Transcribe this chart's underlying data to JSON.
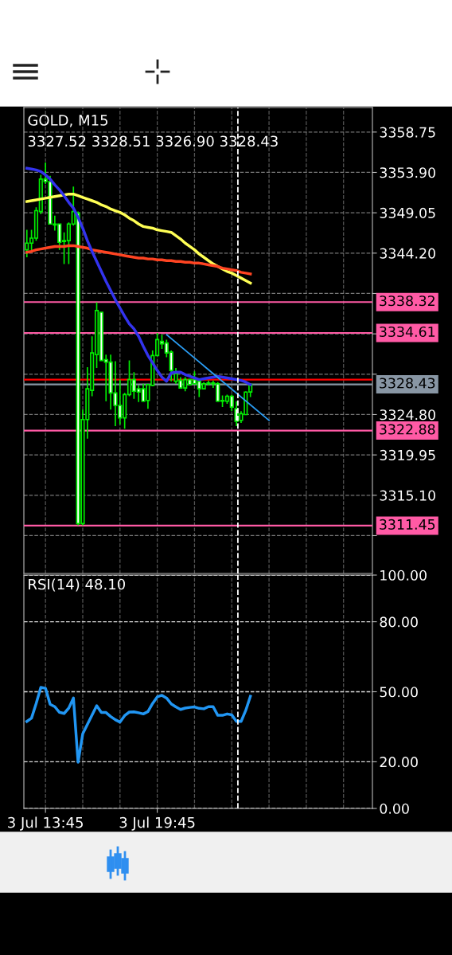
{
  "chart_data": [
    {
      "type": "candlestick",
      "title": "GOLD, M15",
      "subtitle": "3327.52 3328.51 3326.90 3328.43",
      "categories": [
        null,
        null,
        null,
        null,
        null,
        null,
        null,
        null,
        null,
        null,
        null,
        null,
        null,
        null,
        null,
        null,
        null,
        null,
        null,
        null,
        null,
        null,
        null,
        null,
        null,
        null,
        null,
        null,
        null,
        null,
        null,
        null,
        null,
        null,
        null,
        null,
        null,
        null,
        null,
        null,
        null,
        null,
        null,
        null,
        null,
        null,
        null,
        null,
        null,
        null,
        null,
        null,
        null,
        null,
        null,
        null,
        null,
        null,
        null,
        null,
        null,
        null,
        null,
        null,
        null,
        null,
        null,
        null,
        null,
        null,
        null,
        null,
        null,
        null,
        null
      ],
      "ylim": [
        3305.7,
        3361.7
      ],
      "yticks": [
        {
          "value": 3358.75,
          "label": "3358.75"
        },
        {
          "value": 3353.9,
          "label": "3353.90"
        },
        {
          "value": 3349.05,
          "label": "3349.05"
        },
        {
          "value": 3344.2,
          "label": "3344.20"
        },
        {
          "value": 3339.35,
          "label": null
        },
        {
          "value": 3334.5,
          "label": null
        },
        {
          "value": 3329.65,
          "label": null
        },
        {
          "value": 3324.8,
          "label": "3324.80"
        },
        {
          "value": 3319.95,
          "label": "3319.95"
        },
        {
          "value": 3315.1,
          "label": "3315.10"
        },
        {
          "value": 3310.25,
          "label": null
        }
      ],
      "tick_labels": "y",
      "grid": true,
      "series": [
        {
          "type": "candlestick",
          "color": "#00ee00",
          "ohlc": [
            [
              3344.6,
              3347.0,
              3343.7,
              3345.4
            ],
            [
              3345.4,
              3347.0,
              3344.4,
              3346.0
            ],
            [
              3346.0,
              3349.7,
              3345.7,
              3349.3
            ],
            [
              3349.2,
              3353.6,
              3348.9,
              3353.1
            ],
            [
              3353.1,
              3355.1,
              3352.5,
              3352.8
            ],
            [
              3352.8,
              3353.5,
              3347.7,
              3347.7
            ],
            [
              3347.7,
              3348.7,
              3346.9,
              3347.6
            ],
            [
              3347.7,
              3347.7,
              3344.6,
              3345.5
            ],
            [
              3345.6,
              3346.7,
              3342.9,
              3345.7
            ],
            [
              3345.7,
              3347.9,
              3342.9,
              3347.7
            ],
            [
              3347.7,
              3352.2,
              3347.5,
              3349.2
            ],
            [
              3349.0,
              3349.2,
              3311.5,
              3311.7
            ],
            [
              3311.7,
              3325.4,
              3311.5,
              3324.2
            ],
            [
              3324.2,
              3330.5,
              3321.9,
              3327.9
            ],
            [
              3327.7,
              3334.2,
              3327.0,
              3332.2
            ],
            [
              3332.0,
              3338.3,
              3330.4,
              3337.3
            ],
            [
              3337.1,
              3337.1,
              3331.3,
              3331.3
            ],
            [
              3331.4,
              3332.0,
              3326.4,
              3331.1
            ],
            [
              3331.1,
              3332.0,
              3325.4,
              3327.4
            ],
            [
              3327.4,
              3331.2,
              3323.4,
              3325.9
            ],
            [
              3325.9,
              3329.0,
              3323.6,
              3324.4
            ],
            [
              3324.4,
              3327.4,
              3323.1,
              3327.2
            ],
            [
              3327.2,
              3331.3,
              3327.0,
              3329.0
            ],
            [
              3329.0,
              3329.9,
              3326.7,
              3327.6
            ],
            [
              3327.9,
              3328.3,
              3326.3,
              3327.5
            ],
            [
              3327.9,
              3328.5,
              3326.3,
              3326.4
            ],
            [
              3326.5,
              3328.5,
              3325.5,
              3328.4
            ],
            [
              3328.3,
              3332.5,
              3328.2,
              3331.9
            ],
            [
              3331.9,
              3334.6,
              3331.8,
              3333.8
            ],
            [
              3333.6,
              3334.4,
              3332.7,
              3333.3
            ],
            [
              3333.4,
              3333.8,
              3331.7,
              3332.2
            ],
            [
              3332.3,
              3332.5,
              3328.8,
              3330.1
            ],
            [
              3328.8,
              3330.4,
              3328.5,
              3329.7
            ],
            [
              3328.9,
              3329.3,
              3327.9,
              3328.0
            ],
            [
              3328.0,
              3329.3,
              3327.6,
              3329.0
            ],
            [
              3329.0,
              3329.1,
              3328.3,
              3328.4
            ],
            [
              3329.0,
              3330.0,
              3328.4,
              3328.5
            ],
            [
              3328.8,
              3329.0,
              3326.9,
              3327.9
            ],
            [
              3327.9,
              3328.7,
              3327.9,
              3328.5
            ],
            [
              3328.5,
              3328.9,
              3328.3,
              3328.6
            ],
            [
              3328.6,
              3328.9,
              3328.0,
              3328.5
            ],
            [
              3328.5,
              3328.7,
              3326.3,
              3326.4
            ],
            [
              3326.5,
              3327.1,
              3325.7,
              3326.4
            ],
            [
              3326.4,
              3327.2,
              3326.1,
              3327.0
            ],
            [
              3327.0,
              3327.2,
              3325.2,
              3325.7
            ],
            [
              3325.5,
              3326.4,
              3323.4,
              3324.0
            ],
            [
              3324.1,
              3325.2,
              3323.8,
              3324.9
            ],
            [
              3324.8,
              3327.6,
              3324.8,
              3327.5
            ],
            [
              3327.52,
              3328.51,
              3326.9,
              3328.43
            ],
            null,
            null,
            null,
            null,
            null,
            null,
            null,
            null,
            null,
            null,
            null,
            null,
            null,
            null,
            null,
            null,
            null,
            null,
            null,
            null,
            null,
            null,
            null,
            null,
            null,
            null
          ]
        },
        {
          "type": "line",
          "color": "#ffff55",
          "values": [
            3350.4,
            3350.5,
            3350.6,
            3350.7,
            3350.8,
            3350.9,
            3351.0,
            3351.1,
            3351.2,
            3351.3,
            3351.3,
            3351.1,
            3350.9,
            3350.7,
            3350.5,
            3350.3,
            3350.0,
            3349.8,
            3349.5,
            3349.3,
            3349.1,
            3348.8,
            3348.4,
            3348.1,
            3347.7,
            3347.4,
            3347.3,
            3347.2,
            3347.0,
            3346.9,
            3346.8,
            3346.7,
            3346.3,
            3345.9,
            3345.4,
            3345.0,
            3344.6,
            3344.1,
            3343.7,
            3343.3,
            3342.9,
            3342.6,
            3342.3,
            3342.0,
            3341.8,
            3341.5,
            3341.2,
            3340.9,
            3340.6,
            null,
            null,
            null,
            null,
            null,
            null,
            null,
            null,
            null,
            null,
            null,
            null,
            null,
            null,
            null,
            null,
            null,
            null,
            null,
            null,
            null,
            null,
            null,
            null,
            null,
            null
          ]
        },
        {
          "type": "line",
          "color": "#ff4422",
          "values": [
            3344.3,
            3344.4,
            3344.6,
            3344.7,
            3344.8,
            3344.9,
            3345.0,
            3345.0,
            3345.0,
            3345.1,
            3345.1,
            3345.0,
            3344.9,
            3344.8,
            3344.6,
            3344.5,
            3344.4,
            3344.3,
            3344.2,
            3344.1,
            3344.0,
            3343.9,
            3343.8,
            3343.7,
            3343.6,
            3343.6,
            3343.5,
            3343.5,
            3343.4,
            3343.4,
            3343.3,
            3343.3,
            3343.2,
            3343.2,
            3343.1,
            3343.1,
            3343.0,
            3343.0,
            3342.9,
            3342.8,
            3342.7,
            3342.6,
            3342.4,
            3342.3,
            3342.2,
            3342.1,
            3341.9,
            3341.8,
            3341.7,
            null,
            null,
            null,
            null,
            null,
            null,
            null,
            null,
            null,
            null,
            null,
            null,
            null,
            null,
            null,
            null,
            null,
            null,
            null,
            null,
            null,
            null,
            null,
            null,
            null,
            null
          ]
        },
        {
          "type": "line",
          "color": "#3333ee",
          "values": [
            3354.4,
            3354.3,
            3354.2,
            3354.0,
            3353.6,
            3353.1,
            3352.4,
            3351.8,
            3351.1,
            3350.3,
            3349.6,
            3348.5,
            3347.2,
            3345.7,
            3344.4,
            3343.2,
            3342.0,
            3340.8,
            3339.7,
            3338.6,
            3337.6,
            3336.6,
            3335.7,
            3335.1,
            3334.2,
            3333.0,
            3331.9,
            3331.0,
            3330.1,
            3329.3,
            3328.8,
            3329.8,
            3329.9,
            3329.9,
            3329.6,
            3329.4,
            3329.2,
            3329.0,
            3329.1,
            3329.2,
            3329.3,
            3329.4,
            3329.3,
            3329.2,
            3329.1,
            3329.0,
            3328.9,
            3328.7,
            3328.4,
            null,
            null,
            null,
            null,
            null,
            null,
            null,
            null,
            null,
            null,
            null,
            null,
            null,
            null,
            null,
            null,
            null,
            null,
            null,
            null,
            null,
            null,
            null,
            null,
            null,
            null
          ]
        },
        {
          "type": "line",
          "color": "#2a9df4",
          "values": [
            null,
            null,
            null,
            null,
            null,
            null,
            null,
            null,
            null,
            null,
            null,
            null,
            null,
            null,
            null,
            null,
            null,
            null,
            null,
            null,
            null,
            null,
            null,
            null,
            null,
            null,
            null,
            null,
            null,
            null,
            3334.4,
            null,
            null,
            null,
            null,
            null,
            null,
            null,
            null,
            null,
            null,
            null,
            null,
            null,
            null,
            null,
            null,
            null,
            null,
            null,
            null,
            null,
            3324.1,
            null,
            null,
            null,
            null,
            null,
            null,
            null,
            null,
            null,
            null,
            null,
            null,
            null,
            null,
            null,
            null,
            null,
            null,
            null,
            null,
            null,
            null
          ]
        }
      ],
      "ref_lines": [
        {
          "axis": "y",
          "value": 3338.32,
          "label": "3338.32",
          "color": "#ff5aa5"
        },
        {
          "axis": "y",
          "value": 3334.61,
          "label": "3334.61",
          "color": "#ff5aa5"
        },
        {
          "axis": "y",
          "value": 3322.88,
          "label": "3322.88",
          "color": "#ff5aa5"
        },
        {
          "axis": "y",
          "value": 3311.45,
          "label": "3311.45",
          "color": "#ff5aa5"
        },
        {
          "axis": "y",
          "value": 3329.0,
          "color": "#ff0000"
        },
        {
          "axis": "y",
          "value": 3328.43,
          "label": "3328.43",
          "color": "#8896a4"
        }
      ]
    },
    {
      "type": "line",
      "title": "RSI(14) 48.10",
      "categories": [
        null,
        null,
        null,
        null,
        "3 Jul 13:45",
        null,
        null,
        null,
        null,
        null,
        null,
        null,
        null,
        null,
        null,
        null,
        null,
        null,
        null,
        null,
        null,
        null,
        null,
        null,
        null,
        null,
        null,
        null,
        "3 Jul 19:45",
        null,
        null,
        null,
        null,
        null,
        null,
        null,
        null,
        null,
        null,
        null,
        null,
        null,
        null,
        null,
        null,
        null,
        null,
        null,
        null,
        null,
        null,
        null,
        null,
        null,
        null,
        null,
        null,
        null,
        null,
        null,
        null,
        null,
        null,
        null,
        null,
        null,
        null,
        null,
        null,
        null,
        null,
        null,
        null,
        null,
        null
      ],
      "ylim": [
        0,
        100
      ],
      "yticks": [
        {
          "value": 100,
          "label": "100.00"
        },
        {
          "value": 80,
          "label": "80.00"
        },
        {
          "value": 50,
          "label": "50.00"
        },
        {
          "value": 20,
          "label": "20.00"
        },
        {
          "value": 0,
          "label": "0.00"
        }
      ],
      "grid": true,
      "series": [
        {
          "color": "#2196f3",
          "values": [
            37.3,
            38.7,
            45.0,
            51.9,
            51.5,
            44.6,
            43.6,
            41.2,
            40.7,
            43.0,
            47.3,
            19.8,
            32.0,
            36.0,
            40.0,
            44.0,
            41.1,
            41.1,
            39.4,
            38.0,
            37.0,
            39.8,
            41.3,
            41.4,
            41.0,
            40.5,
            41.5,
            45.0,
            47.8,
            48.5,
            47.3,
            44.8,
            43.5,
            42.4,
            43.0,
            43.3,
            43.5,
            42.9,
            42.7,
            43.6,
            43.6,
            39.9,
            39.9,
            40.5,
            40.1,
            37.3,
            37.3,
            42.0,
            48.1,
            null,
            null,
            null,
            null,
            null,
            null,
            null,
            null,
            null,
            null,
            null,
            null,
            null,
            null,
            null,
            null,
            null,
            null,
            null,
            null,
            null,
            null,
            null,
            null,
            null,
            null
          ]
        }
      ]
    }
  ]
}
